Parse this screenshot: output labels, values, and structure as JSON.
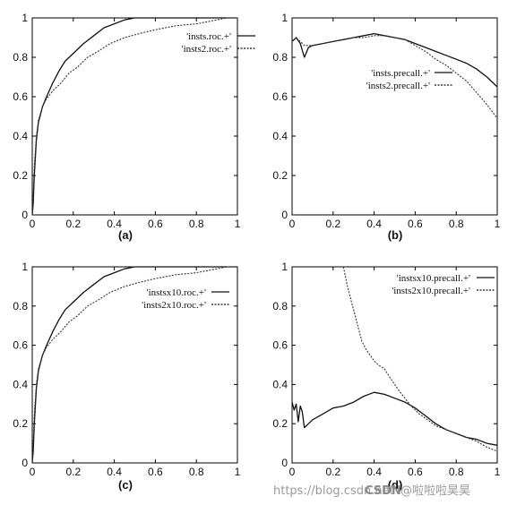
{
  "chart_data": [
    {
      "type": "line",
      "panel_label": "(a)",
      "xlim": [
        0,
        1
      ],
      "ylim": [
        0,
        1
      ],
      "x_ticks": [
        "0",
        "0.2",
        "0.4",
        "0.6",
        "0.8",
        "1"
      ],
      "y_ticks": [
        "0",
        "0.2",
        "0.4",
        "0.6",
        "0.8",
        "1"
      ],
      "grid": false,
      "legend_position": "top-right",
      "series": [
        {
          "name": "'insts.roc.+'",
          "style": "solid",
          "x": [
            0,
            0.005,
            0.01,
            0.02,
            0.03,
            0.05,
            0.07,
            0.1,
            0.13,
            0.16,
            0.2,
            0.25,
            0.3,
            0.35,
            0.4,
            0.45,
            0.5,
            0.55,
            1
          ],
          "y": [
            0,
            0.06,
            0.2,
            0.38,
            0.47,
            0.55,
            0.6,
            0.67,
            0.73,
            0.78,
            0.82,
            0.87,
            0.91,
            0.95,
            0.97,
            0.99,
            1,
            1,
            1
          ]
        },
        {
          "name": "'insts2.roc.+'",
          "style": "dashed",
          "x": [
            0,
            0.005,
            0.01,
            0.02,
            0.03,
            0.05,
            0.07,
            0.1,
            0.14,
            0.18,
            0.22,
            0.27,
            0.32,
            0.38,
            0.45,
            0.52,
            0.6,
            0.7,
            0.8,
            0.9,
            0.95,
            1
          ],
          "y": [
            0,
            0.1,
            0.25,
            0.4,
            0.48,
            0.55,
            0.59,
            0.63,
            0.67,
            0.72,
            0.75,
            0.8,
            0.83,
            0.87,
            0.9,
            0.92,
            0.94,
            0.96,
            0.97,
            0.99,
            1,
            1
          ]
        }
      ]
    },
    {
      "type": "line",
      "panel_label": "(b)",
      "xlim": [
        0,
        1
      ],
      "ylim": [
        0,
        1
      ],
      "x_ticks": [
        "0",
        "0.2",
        "0.4",
        "0.6",
        "0.8",
        "1"
      ],
      "y_ticks": [
        "0",
        "0.2",
        "0.4",
        "0.6",
        "0.8",
        "1"
      ],
      "grid": false,
      "legend_position": "center-right",
      "series": [
        {
          "name": "'insts.precall.+'",
          "style": "solid",
          "x": [
            0,
            0.02,
            0.04,
            0.06,
            0.08,
            0.1,
            0.15,
            0.2,
            0.25,
            0.3,
            0.35,
            0.4,
            0.45,
            0.5,
            0.55,
            0.6,
            0.65,
            0.7,
            0.75,
            0.8,
            0.85,
            0.9,
            0.95,
            1
          ],
          "y": [
            0.88,
            0.9,
            0.87,
            0.8,
            0.85,
            0.86,
            0.87,
            0.88,
            0.89,
            0.9,
            0.91,
            0.92,
            0.91,
            0.9,
            0.89,
            0.87,
            0.85,
            0.83,
            0.81,
            0.79,
            0.77,
            0.74,
            0.7,
            0.65
          ]
        },
        {
          "name": "'insts2.precall.+'",
          "style": "dashed",
          "x": [
            0,
            0.02,
            0.04,
            0.06,
            0.1,
            0.15,
            0.2,
            0.25,
            0.3,
            0.35,
            0.4,
            0.45,
            0.5,
            0.55,
            0.6,
            0.65,
            0.7,
            0.75,
            0.8,
            0.85,
            0.9,
            0.95,
            1
          ],
          "y": [
            0.88,
            0.9,
            0.88,
            0.86,
            0.86,
            0.87,
            0.88,
            0.89,
            0.9,
            0.9,
            0.91,
            0.91,
            0.9,
            0.89,
            0.86,
            0.83,
            0.79,
            0.76,
            0.72,
            0.68,
            0.62,
            0.56,
            0.49
          ]
        }
      ]
    },
    {
      "type": "line",
      "panel_label": "(c)",
      "xlim": [
        0,
        1
      ],
      "ylim": [
        0,
        1
      ],
      "x_ticks": [
        "0",
        "0.2",
        "0.4",
        "0.6",
        "0.8",
        "1"
      ],
      "y_ticks": [
        "0",
        "0.2",
        "0.4",
        "0.6",
        "0.8",
        "1"
      ],
      "grid": false,
      "legend_position": "top-right",
      "series": [
        {
          "name": "'instsx10.roc.+'",
          "style": "solid",
          "x": [
            0,
            0.005,
            0.01,
            0.02,
            0.03,
            0.05,
            0.07,
            0.1,
            0.13,
            0.16,
            0.2,
            0.25,
            0.3,
            0.35,
            0.4,
            0.45,
            0.5,
            0.55,
            1
          ],
          "y": [
            0,
            0.06,
            0.2,
            0.38,
            0.47,
            0.55,
            0.6,
            0.67,
            0.73,
            0.78,
            0.82,
            0.87,
            0.91,
            0.95,
            0.97,
            0.99,
            1,
            1,
            1
          ]
        },
        {
          "name": "'insts2x10.roc.+'",
          "style": "dashed",
          "x": [
            0,
            0.005,
            0.01,
            0.02,
            0.03,
            0.05,
            0.07,
            0.1,
            0.14,
            0.18,
            0.22,
            0.27,
            0.32,
            0.38,
            0.45,
            0.52,
            0.6,
            0.7,
            0.8,
            0.9,
            0.95,
            1
          ],
          "y": [
            0,
            0.1,
            0.25,
            0.4,
            0.48,
            0.55,
            0.59,
            0.63,
            0.67,
            0.72,
            0.75,
            0.8,
            0.83,
            0.87,
            0.9,
            0.92,
            0.94,
            0.96,
            0.97,
            0.99,
            1,
            1
          ]
        }
      ]
    },
    {
      "type": "line",
      "panel_label": "(d)",
      "xlim": [
        0,
        1
      ],
      "ylim": [
        0,
        1
      ],
      "x_ticks": [
        "0",
        "0.2",
        "0.4",
        "0.6",
        "0.8",
        "1"
      ],
      "y_ticks": [
        "0",
        "0.2",
        "0.4",
        "0.6",
        "0.8",
        "1"
      ],
      "grid": false,
      "legend_position": "top-right",
      "series": [
        {
          "name": "'instsx10.precall.+'",
          "style": "solid",
          "x": [
            0,
            0.01,
            0.02,
            0.03,
            0.04,
            0.05,
            0.06,
            0.08,
            0.1,
            0.15,
            0.2,
            0.25,
            0.3,
            0.35,
            0.4,
            0.45,
            0.5,
            0.55,
            0.6,
            0.65,
            0.7,
            0.75,
            0.8,
            0.85,
            0.9,
            0.95,
            1
          ],
          "y": [
            0.31,
            0.27,
            0.3,
            0.21,
            0.29,
            0.26,
            0.18,
            0.2,
            0.22,
            0.25,
            0.28,
            0.29,
            0.31,
            0.34,
            0.36,
            0.35,
            0.33,
            0.31,
            0.28,
            0.24,
            0.2,
            0.17,
            0.15,
            0.13,
            0.12,
            0.1,
            0.09
          ]
        },
        {
          "name": "'insts2x10.precall.+'",
          "style": "dashed",
          "x": [
            0.25,
            0.27,
            0.3,
            0.32,
            0.34,
            0.36,
            0.38,
            0.4,
            0.42,
            0.45,
            0.48,
            0.5,
            0.52,
            0.55,
            0.58,
            0.62,
            0.66,
            0.7,
            0.75,
            0.8,
            0.85,
            0.9,
            0.95,
            1
          ],
          "y": [
            1,
            0.9,
            0.78,
            0.7,
            0.62,
            0.58,
            0.55,
            0.52,
            0.5,
            0.48,
            0.43,
            0.4,
            0.37,
            0.33,
            0.29,
            0.25,
            0.22,
            0.19,
            0.17,
            0.15,
            0.13,
            0.11,
            0.08,
            0.06
          ]
        }
      ]
    }
  ],
  "watermark": {
    "site": "https://blog.csdn.net",
    "brand": "CSDN",
    "user": "@啦啦啦昊昊"
  }
}
